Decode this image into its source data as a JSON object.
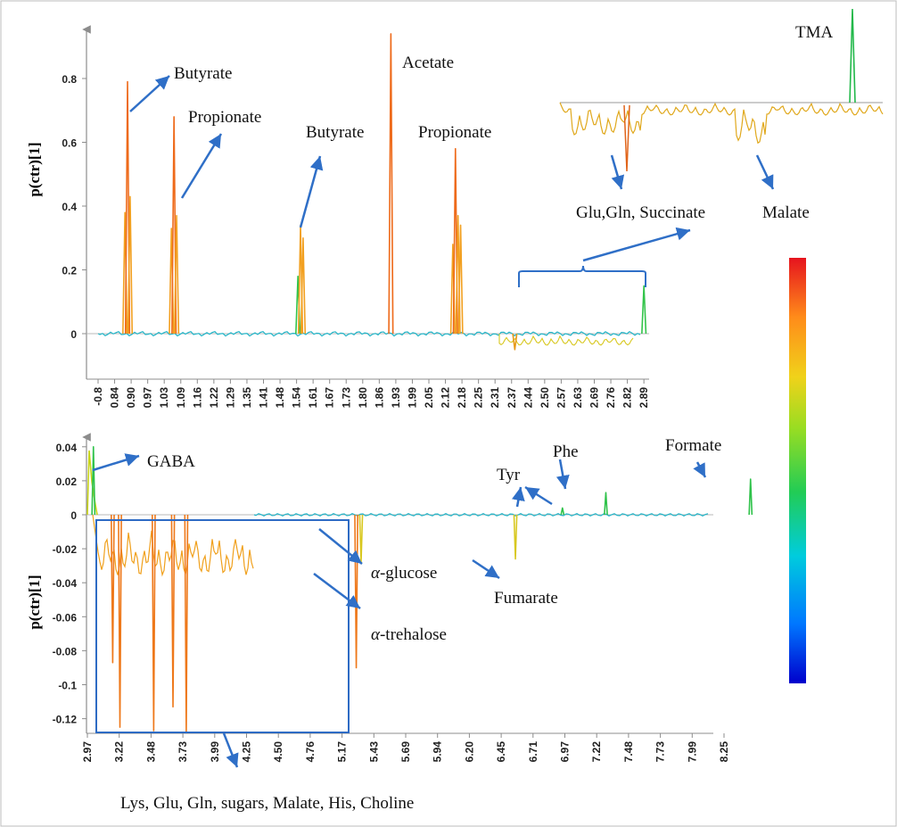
{
  "colors": {
    "axis": "#8c8c8c",
    "arrow": "#2f6fc7",
    "box": "#2e6bc4",
    "colorbar": [
      "#0000cc",
      "#00a6ff",
      "#00d19a",
      "#33cc33",
      "#d9d91a",
      "#ffa31a",
      "#e63c0a",
      "#e61414"
    ]
  },
  "chart_data": [
    {
      "type": "line",
      "ylabel": "p(ctr)[1]",
      "xlabel": "",
      "ylim": [
        -0.08,
        0.95
      ],
      "y_ticks": [
        "0.8",
        "0.6",
        "0.4",
        "0.2",
        "0"
      ],
      "x_ticks": [
        "-0.8",
        "0.84",
        "0.90",
        "0.97",
        "1.03",
        "1.09",
        "1.16",
        "1.22",
        "1.29",
        "1.35",
        "1.41",
        "1.48",
        "1.54",
        "1.61",
        "1.67",
        "1.73",
        "1.80",
        "1.86",
        "1.93",
        "1.99",
        "2.05",
        "2.12",
        "2.18",
        "2.25",
        "2.31",
        "2.37",
        "2.44",
        "2.50",
        "2.57",
        "2.63",
        "2.69",
        "2.76",
        "2.82",
        "2.89"
      ],
      "peaks": [
        {
          "x": 0.88,
          "y": 0.38
        },
        {
          "x": 0.89,
          "y": 0.79
        },
        {
          "x": 0.9,
          "y": 0.43
        },
        {
          "x": 1.06,
          "y": 0.33
        },
        {
          "x": 1.07,
          "y": 0.68
        },
        {
          "x": 1.08,
          "y": 0.37
        },
        {
          "x": 1.55,
          "y": 0.18
        },
        {
          "x": 1.56,
          "y": 0.34
        },
        {
          "x": 1.57,
          "y": 0.3
        },
        {
          "x": 1.91,
          "y": 0.94
        },
        {
          "x": 2.15,
          "y": 0.28
        },
        {
          "x": 2.16,
          "y": 0.58
        },
        {
          "x": 2.17,
          "y": 0.37
        },
        {
          "x": 2.18,
          "y": 0.34
        },
        {
          "x": 2.39,
          "y": -0.05
        },
        {
          "x": 2.89,
          "y": 0.15
        }
      ],
      "annotations": [
        "Butyrate",
        "Propionate",
        "Butyrate",
        "Acetate",
        "Propionate",
        "TMA",
        "Glu,Gln, Succinate",
        "Malate"
      ]
    },
    {
      "type": "line",
      "ylabel": "p(ctr)[1]",
      "xlabel": "",
      "ylim": [
        -0.13,
        0.045
      ],
      "y_ticks": [
        "0.04",
        "0.02",
        "0",
        "-0.02",
        "-0.04",
        "-0.06",
        "-0.08",
        "-0.1",
        "-0.12"
      ],
      "x_ticks": [
        "2.97",
        "3.22",
        "3.48",
        "3.73",
        "3.99",
        "4.25",
        "4.50",
        "4.76",
        "5.17",
        "5.43",
        "5.69",
        "5.94",
        "6.20",
        "6.45",
        "6.71",
        "6.97",
        "7.22",
        "7.48",
        "7.73",
        "7.99",
        "8.25"
      ],
      "peaks": [
        {
          "x": 3.02,
          "y": 0.04
        },
        {
          "x": 3.18,
          "y": -0.087
        },
        {
          "x": 3.24,
          "y": -0.125
        },
        {
          "x": 3.52,
          "y": -0.127
        },
        {
          "x": 3.68,
          "y": -0.113
        },
        {
          "x": 3.79,
          "y": -0.128
        },
        {
          "x": 5.2,
          "y": -0.09
        },
        {
          "x": 5.24,
          "y": -0.028
        },
        {
          "x": 6.52,
          "y": -0.026
        },
        {
          "x": 6.91,
          "y": 0.004
        },
        {
          "x": 7.27,
          "y": 0.013
        },
        {
          "x": 8.47,
          "y": 0.021
        }
      ],
      "annotations": [
        "GABA",
        "Tyr",
        "Phe",
        "Formate",
        "α-glucose",
        "Fumarate",
        "α-trehalose",
        "Lys, Glu, Gln, sugars, Malate, His, Choline"
      ]
    }
  ],
  "labels": {
    "top_ylabel": "p(ctr)[1]",
    "bottom_ylabel": "p(ctr)[1]",
    "butyrate_1": "Butyrate",
    "propionate_1": "Propionate",
    "butyrate_2": "Butyrate",
    "acetate": "Acetate",
    "propionate_2": "Propionate",
    "tma": "TMA",
    "glu_gln_succinate": "Glu,Gln, Succinate",
    "malate": "Malate",
    "gaba": "GABA",
    "tyr": "Tyr",
    "phe": "Phe",
    "formate": "Formate",
    "glucose_prefix": "α",
    "glucose_suffix": "-glucose",
    "fumarate": "Fumarate",
    "trehalose_prefix": "α",
    "trehalose_suffix": "-trehalose",
    "bottom_note": "Lys, Glu, Gln, sugars, Malate, His, Choline"
  }
}
